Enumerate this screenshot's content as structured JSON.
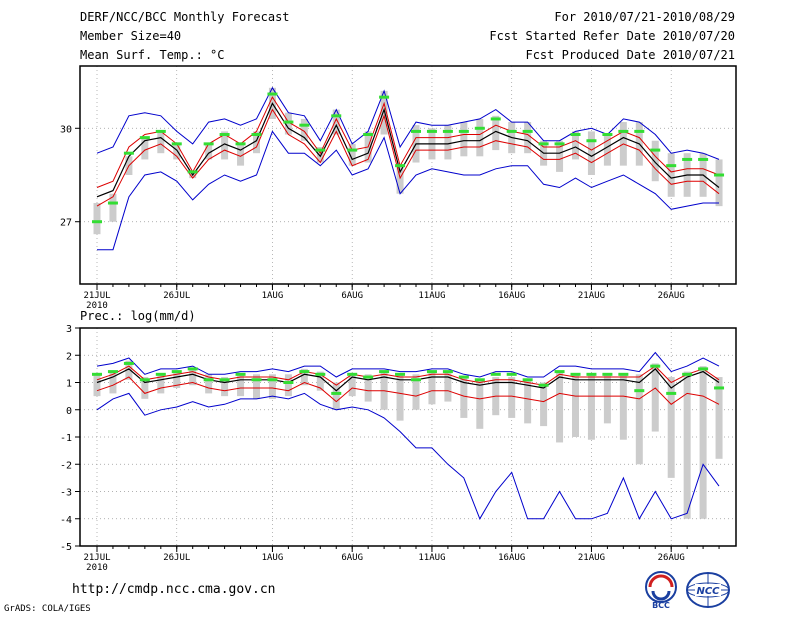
{
  "header": {
    "title": "DERF/NCC/BCC Monthly Forecast",
    "member_size": "Member Size=40",
    "variable": "Mean Surf. Temp.: °C",
    "period": "For 2010/07/21-2010/08/29",
    "started": "Fcst Started Refer Date 2010/07/20",
    "produced": "Fcst Produced Date 2010/07/21"
  },
  "footer": {
    "url": "http://cmdp.ncc.cma.gov.cn",
    "credit": "GrADS: COLA/IGES",
    "logo_bcc": "BCC",
    "logo_ncc": "NCC"
  },
  "colors": {
    "max_min": "#0000cc",
    "spread": "#dd0000",
    "mean": "#000000",
    "box": "#cccccc",
    "obs": "#33dd33"
  },
  "chart_data": [
    {
      "type": "line",
      "title": "Mean Surf. Temp.: °C",
      "x": [
        "21JUL",
        "22JUL",
        "23JUL",
        "24JUL",
        "25JUL",
        "26JUL",
        "27JUL",
        "28JUL",
        "29JUL",
        "30JUL",
        "31JUL",
        "1AUG",
        "2AUG",
        "3AUG",
        "4AUG",
        "5AUG",
        "6AUG",
        "7AUG",
        "8AUG",
        "9AUG",
        "10AUG",
        "11AUG",
        "12AUG",
        "13AUG",
        "14AUG",
        "15AUG",
        "16AUG",
        "17AUG",
        "18AUG",
        "19AUG",
        "20AUG",
        "21AUG",
        "22AUG",
        "23AUG",
        "24AUG",
        "25AUG",
        "26AUG",
        "27AUG",
        "28AUG",
        "29AUG"
      ],
      "x_tick_labels": [
        "21JUL",
        "26JUL",
        "1AUG",
        "6AUG",
        "11AUG",
        "16AUG",
        "21AUG",
        "26AUG"
      ],
      "x_tick_index": [
        0,
        5,
        11,
        16,
        21,
        26,
        31,
        36
      ],
      "year_label": "2010",
      "ylim": [
        25,
        32
      ],
      "y_ticks": [
        27,
        30
      ],
      "series": [
        {
          "name": "ensemble max",
          "values": [
            29.2,
            29.4,
            30.4,
            30.5,
            30.4,
            29.9,
            29.5,
            30.2,
            30.3,
            30.1,
            30.3,
            31.3,
            30.5,
            30.4,
            29.6,
            30.6,
            29.5,
            29.9,
            31.2,
            29.4,
            30.2,
            30.1,
            30.1,
            30.2,
            30.3,
            30.6,
            30.2,
            30.2,
            29.6,
            29.6,
            29.9,
            30.0,
            29.8,
            30.3,
            30.2,
            29.8,
            29.2,
            29.3,
            29.2,
            29.0
          ]
        },
        {
          "name": "spread upper",
          "values": [
            28.1,
            28.3,
            29.4,
            29.8,
            29.9,
            29.5,
            28.6,
            29.5,
            29.8,
            29.5,
            29.9,
            31.0,
            30.2,
            29.9,
            29.2,
            30.3,
            29.3,
            29.4,
            30.8,
            28.8,
            29.7,
            29.7,
            29.7,
            29.8,
            29.8,
            30.1,
            29.9,
            29.8,
            29.4,
            29.4,
            29.6,
            29.3,
            29.6,
            29.9,
            29.7,
            29.1,
            28.6,
            28.7,
            28.7,
            28.5
          ]
        },
        {
          "name": "ensemble mean",
          "values": [
            27.8,
            28.0,
            29.1,
            29.6,
            29.7,
            29.3,
            28.5,
            29.2,
            29.5,
            29.3,
            29.6,
            30.8,
            30.0,
            29.7,
            29.1,
            30.1,
            29.0,
            29.2,
            30.6,
            28.6,
            29.5,
            29.5,
            29.5,
            29.6,
            29.6,
            29.9,
            29.7,
            29.6,
            29.2,
            29.2,
            29.4,
            29.1,
            29.4,
            29.7,
            29.5,
            28.9,
            28.4,
            28.5,
            28.5,
            28.1
          ]
        },
        {
          "name": "spread lower",
          "values": [
            27.5,
            27.8,
            28.8,
            29.3,
            29.5,
            29.1,
            28.4,
            29.0,
            29.3,
            29.1,
            29.4,
            30.6,
            29.8,
            29.5,
            28.9,
            29.9,
            28.8,
            29.0,
            30.4,
            28.4,
            29.3,
            29.3,
            29.3,
            29.4,
            29.4,
            29.6,
            29.5,
            29.4,
            29.0,
            29.0,
            29.2,
            28.9,
            29.2,
            29.5,
            29.3,
            28.7,
            28.2,
            28.3,
            28.3,
            27.9
          ]
        },
        {
          "name": "ensemble min",
          "values": [
            26.1,
            26.1,
            27.8,
            28.5,
            28.6,
            28.3,
            27.7,
            28.2,
            28.5,
            28.3,
            28.5,
            29.9,
            29.2,
            29.2,
            28.8,
            29.3,
            28.5,
            28.7,
            29.7,
            27.9,
            28.5,
            28.7,
            28.6,
            28.5,
            28.5,
            28.7,
            28.8,
            28.8,
            28.2,
            28.1,
            28.4,
            28.1,
            28.3,
            28.5,
            28.2,
            27.9,
            27.4,
            27.5,
            27.6,
            27.6
          ]
        }
      ],
      "box_upper": [
        27.6,
        27.9,
        29.1,
        29.7,
        29.9,
        29.5,
        28.6,
        29.5,
        29.9,
        29.5,
        29.9,
        31.3,
        30.5,
        30.3,
        29.4,
        30.6,
        29.5,
        29.9,
        31.2,
        28.8,
        30.1,
        30.0,
        30.1,
        30.2,
        30.3,
        30.4,
        30.2,
        30.2,
        29.6,
        29.6,
        29.9,
        29.9,
        29.8,
        30.2,
        30.2,
        29.6,
        29.2,
        29.2,
        29.2,
        29.0
      ],
      "box_lower": [
        26.6,
        27.0,
        28.5,
        29.0,
        29.2,
        29.0,
        28.4,
        29.0,
        29.0,
        28.8,
        29.2,
        30.3,
        29.8,
        29.6,
        28.9,
        29.8,
        28.8,
        28.9,
        29.8,
        27.9,
        28.9,
        29.0,
        29.0,
        29.1,
        29.1,
        29.3,
        29.2,
        29.2,
        28.8,
        28.6,
        29.0,
        28.5,
        28.8,
        28.8,
        28.8,
        28.3,
        27.8,
        27.8,
        27.8,
        27.5
      ],
      "obs": [
        27.0,
        27.6,
        29.2,
        29.7,
        29.9,
        29.5,
        28.6,
        29.5,
        29.8,
        29.5,
        29.8,
        31.1,
        30.2,
        30.1,
        29.3,
        30.4,
        29.3,
        29.8,
        31.0,
        28.8,
        29.9,
        29.9,
        29.9,
        29.9,
        30.0,
        30.3,
        29.9,
        29.9,
        29.5,
        29.5,
        29.8,
        29.6,
        29.8,
        29.9,
        29.9,
        29.3,
        28.8,
        29.0,
        29.0,
        28.5
      ]
    },
    {
      "type": "line",
      "title": "Prec.: log(mm/d)",
      "x": [
        "21JUL",
        "22JUL",
        "23JUL",
        "24JUL",
        "25JUL",
        "26JUL",
        "27JUL",
        "28JUL",
        "29JUL",
        "30JUL",
        "31JUL",
        "1AUG",
        "2AUG",
        "3AUG",
        "4AUG",
        "5AUG",
        "6AUG",
        "7AUG",
        "8AUG",
        "9AUG",
        "10AUG",
        "11AUG",
        "12AUG",
        "13AUG",
        "14AUG",
        "15AUG",
        "16AUG",
        "17AUG",
        "18AUG",
        "19AUG",
        "20AUG",
        "21AUG",
        "22AUG",
        "23AUG",
        "24AUG",
        "25AUG",
        "26AUG",
        "27AUG",
        "28AUG",
        "29AUG"
      ],
      "x_tick_labels": [
        "21JUL",
        "26JUL",
        "1AUG",
        "6AUG",
        "11AUG",
        "16AUG",
        "21AUG",
        "26AUG"
      ],
      "x_tick_index": [
        0,
        5,
        11,
        16,
        21,
        26,
        31,
        36
      ],
      "year_label": "2010",
      "ylim": [
        -5,
        3
      ],
      "y_ticks": [
        -5,
        -4,
        -3,
        -2,
        -1,
        0,
        1,
        2,
        3
      ],
      "series": [
        {
          "name": "ensemble max",
          "values": [
            1.6,
            1.7,
            1.9,
            1.3,
            1.5,
            1.5,
            1.6,
            1.3,
            1.3,
            1.4,
            1.4,
            1.5,
            1.4,
            1.6,
            1.6,
            1.2,
            1.5,
            1.5,
            1.5,
            1.4,
            1.4,
            1.5,
            1.5,
            1.3,
            1.2,
            1.4,
            1.4,
            1.2,
            1.2,
            1.6,
            1.6,
            1.5,
            1.5,
            1.5,
            1.4,
            2.1,
            1.4,
            1.6,
            1.9,
            1.6
          ]
        },
        {
          "name": "spread upper",
          "values": [
            1.1,
            1.3,
            1.6,
            1.1,
            1.2,
            1.3,
            1.4,
            1.2,
            1.1,
            1.2,
            1.2,
            1.2,
            1.1,
            1.4,
            1.3,
            0.9,
            1.3,
            1.2,
            1.3,
            1.2,
            1.2,
            1.3,
            1.3,
            1.1,
            1.0,
            1.1,
            1.1,
            1.0,
            0.9,
            1.3,
            1.2,
            1.2,
            1.2,
            1.2,
            1.2,
            1.6,
            1.0,
            1.3,
            1.5,
            1.1
          ]
        },
        {
          "name": "ensemble mean",
          "values": [
            1.0,
            1.2,
            1.5,
            1.0,
            1.1,
            1.2,
            1.3,
            1.1,
            1.0,
            1.1,
            1.1,
            1.1,
            1.0,
            1.3,
            1.2,
            0.7,
            1.2,
            1.1,
            1.2,
            1.1,
            1.1,
            1.2,
            1.2,
            1.0,
            0.9,
            1.0,
            1.0,
            0.9,
            0.8,
            1.2,
            1.1,
            1.1,
            1.1,
            1.1,
            1.0,
            1.5,
            0.8,
            1.2,
            1.4,
            1.0
          ]
        },
        {
          "name": "spread lower",
          "values": [
            0.7,
            0.9,
            1.2,
            0.6,
            0.8,
            0.9,
            1.0,
            0.8,
            0.7,
            0.8,
            0.8,
            0.8,
            0.7,
            1.0,
            0.8,
            0.3,
            0.8,
            0.7,
            0.7,
            0.6,
            0.5,
            0.7,
            0.7,
            0.5,
            0.4,
            0.5,
            0.5,
            0.4,
            0.3,
            0.6,
            0.5,
            0.5,
            0.5,
            0.5,
            0.4,
            0.8,
            0.2,
            0.6,
            0.5,
            0.2
          ]
        },
        {
          "name": "ensemble min",
          "values": [
            0.0,
            0.4,
            0.6,
            -0.2,
            0.0,
            0.1,
            0.3,
            0.1,
            0.2,
            0.4,
            0.4,
            0.5,
            0.4,
            0.6,
            0.2,
            0.0,
            0.1,
            0.0,
            -0.3,
            -0.8,
            -1.4,
            -1.4,
            -2.0,
            -2.5,
            -4.0,
            -3.0,
            -2.3,
            -4.0,
            -4.0,
            -3.0,
            -4.0,
            -4.0,
            -3.8,
            -2.5,
            -4.0,
            -3.0,
            -4.0,
            -3.8,
            -2.0,
            -2.8
          ]
        }
      ],
      "box_upper": [
        1.3,
        1.4,
        1.8,
        1.2,
        1.3,
        1.4,
        1.5,
        1.3,
        1.2,
        1.3,
        1.3,
        1.3,
        1.3,
        1.5,
        1.4,
        1.0,
        1.3,
        1.3,
        1.4,
        1.3,
        1.3,
        1.4,
        1.4,
        1.2,
        1.1,
        1.2,
        1.2,
        1.1,
        1.0,
        1.4,
        1.3,
        1.3,
        1.3,
        1.3,
        1.3,
        1.7,
        1.2,
        1.4,
        1.6,
        1.2
      ],
      "box_lower": [
        0.5,
        0.6,
        1.1,
        0.4,
        0.6,
        0.8,
        0.9,
        0.6,
        0.5,
        0.5,
        0.4,
        0.4,
        0.5,
        0.9,
        0.7,
        0.0,
        0.5,
        0.3,
        0.0,
        -0.4,
        0.0,
        0.2,
        0.3,
        -0.3,
        -0.7,
        -0.2,
        -0.3,
        -0.5,
        -0.6,
        -1.2,
        -1.0,
        -1.1,
        -0.5,
        -1.1,
        -2.0,
        -0.8,
        -2.5,
        -4.0,
        -4.0,
        -1.8
      ],
      "obs": [
        1.3,
        1.4,
        1.7,
        1.1,
        1.3,
        1.4,
        1.5,
        1.1,
        1.1,
        1.3,
        1.1,
        1.1,
        1.0,
        1.4,
        1.3,
        0.6,
        1.3,
        1.2,
        1.4,
        1.3,
        1.1,
        1.4,
        1.4,
        1.2,
        1.1,
        1.3,
        1.3,
        1.1,
        0.9,
        1.4,
        1.3,
        1.3,
        1.3,
        1.3,
        0.7,
        1.6,
        0.6,
        1.3,
        1.5,
        0.8
      ]
    }
  ]
}
